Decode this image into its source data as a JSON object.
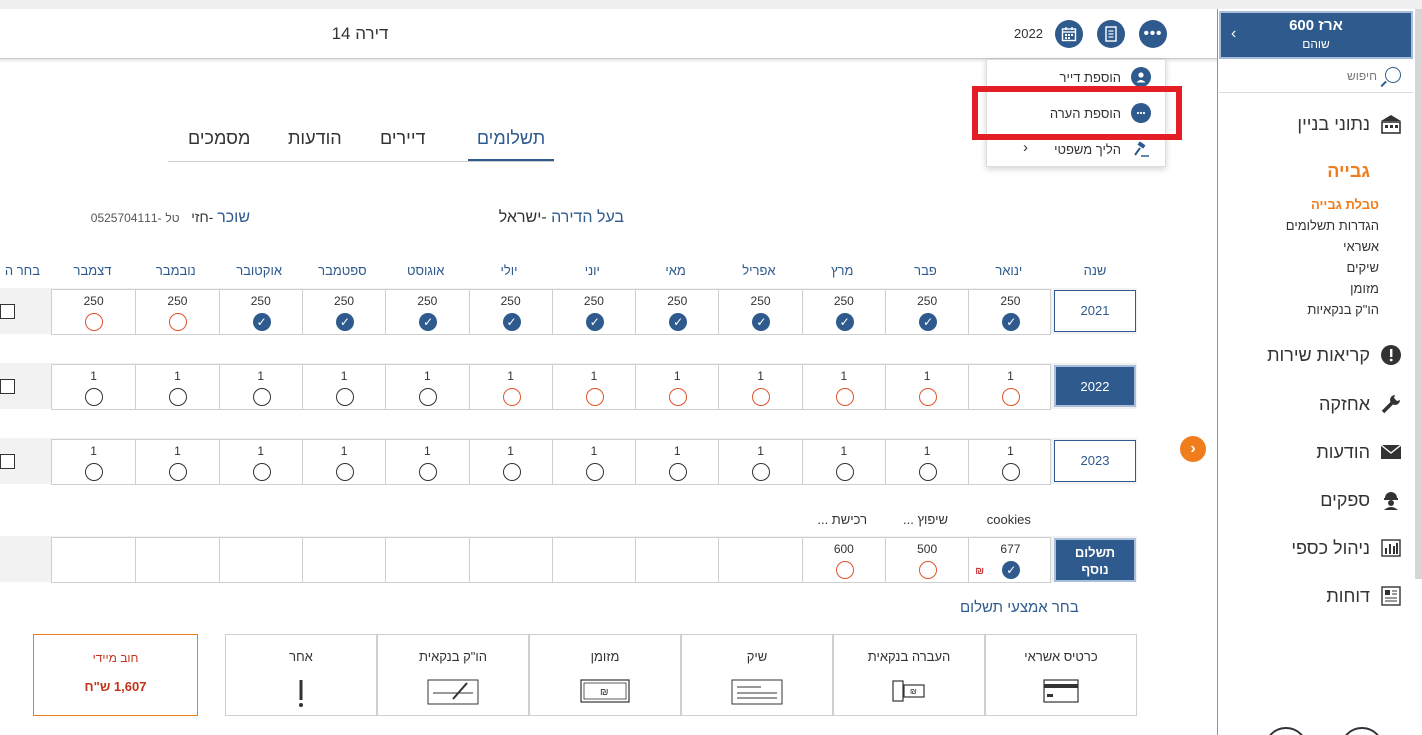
{
  "header": {
    "apartment_title": "דירה 14",
    "year": "2022"
  },
  "menu": {
    "add_tenant": "הוספת דייר",
    "add_note": "הוספת הערה",
    "legal_process": "הליך משפטי"
  },
  "tabs": [
    "תשלומים",
    "דיירים",
    "הודעות",
    "מסמכים"
  ],
  "owner": {
    "label": "בעל הדירה",
    "name": "-ישראל"
  },
  "renter": {
    "label": "שוכר",
    "name": "-חזי",
    "phone_label": "טל",
    "phone": "-0525704111"
  },
  "grid": {
    "year_header": "שנה",
    "select_header": "בחר ה",
    "months": [
      "ינואר",
      "פבר",
      "מרץ",
      "אפריל",
      "מאי",
      "יוני",
      "יולי",
      "אוגוסט",
      "ספטמבר",
      "אוקטובר",
      "נובמבר",
      "דצמבר"
    ],
    "rows": [
      {
        "year": "2021",
        "active": false,
        "amounts": [
          "250",
          "250",
          "250",
          "250",
          "250",
          "250",
          "250",
          "250",
          "250",
          "250",
          "250",
          "250"
        ],
        "status": [
          "paid",
          "paid",
          "paid",
          "paid",
          "paid",
          "paid",
          "paid",
          "paid",
          "paid",
          "paid",
          "due",
          "due"
        ]
      },
      {
        "year": "2022",
        "active": true,
        "amounts": [
          "1",
          "1",
          "1",
          "1",
          "1",
          "1",
          "1",
          "1",
          "1",
          "1",
          "1",
          "1"
        ],
        "status": [
          "due",
          "due",
          "due",
          "due",
          "due",
          "due",
          "due",
          "open",
          "open",
          "open",
          "open",
          "open"
        ]
      },
      {
        "year": "2023",
        "active": false,
        "amounts": [
          "1",
          "1",
          "1",
          "1",
          "1",
          "1",
          "1",
          "1",
          "1",
          "1",
          "1",
          "1"
        ],
        "status": [
          "open",
          "open",
          "open",
          "open",
          "open",
          "open",
          "open",
          "open",
          "open",
          "open",
          "open",
          "open"
        ]
      }
    ]
  },
  "extra": {
    "label_line1": "תשלום",
    "label_line2": "נוסף",
    "headers": [
      "cookies",
      "שיפוץ ...",
      "רכישת ..."
    ],
    "amounts": [
      "677",
      "500",
      "600"
    ],
    "status": [
      "paid",
      "due",
      "due"
    ],
    "shekel_mark": "₪"
  },
  "payment_methods": {
    "title": "בחר אמצעי תשלום",
    "items": [
      "כרטיס אשראי",
      "העברה בנקאית",
      "שיק",
      "מזומן",
      "הו\"ק בנקאית",
      "אחר"
    ],
    "debt_label": "חוב מיידי",
    "debt_value": "1,607 ש\"ח"
  },
  "sidebar": {
    "building_name": "ארז 600",
    "building_area": "שוהם",
    "search_placeholder": "חיפוש",
    "items": [
      "נתוני בניין",
      "גבייה",
      "קריאות שירות",
      "אחזקה",
      "הודעות",
      "ספקים",
      "ניהול כספי",
      "דוחות"
    ],
    "sub_items": [
      "טבלת גבייה",
      "הגדרות תשלומים",
      "אשראי",
      "שיקים",
      "מזומן",
      "הו\"ק בנקאיות"
    ]
  },
  "colors": {
    "primary": "#2e5a8e",
    "accent": "#f07d1c",
    "due": "#e0542a",
    "highlight": "#e31e24"
  }
}
